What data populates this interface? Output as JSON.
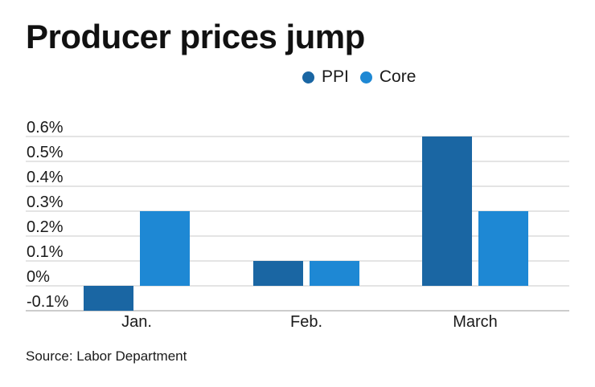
{
  "title": "Producer prices jump",
  "source": "Source: Labor Department",
  "chart_data": {
    "type": "bar",
    "title": "Producer prices jump",
    "xlabel": "",
    "ylabel": "",
    "categories": [
      "Jan.",
      "Feb.",
      "March"
    ],
    "series": [
      {
        "name": "PPI",
        "color": "#1a66a3",
        "values": [
          -0.1,
          0.1,
          0.6
        ]
      },
      {
        "name": "Core",
        "color": "#1e88d4",
        "values": [
          0.3,
          0.1,
          0.3
        ]
      }
    ],
    "y_ticks": [
      "0.6%",
      "0.5%",
      "0.4%",
      "0.3%",
      "0.2%",
      "0.1%",
      "0%",
      "-0.1%"
    ],
    "y_tick_values": [
      0.6,
      0.5,
      0.4,
      0.3,
      0.2,
      0.1,
      0,
      -0.1
    ],
    "ylim": [
      -0.1,
      0.6
    ],
    "grid": true,
    "legend_position": "top-right"
  }
}
